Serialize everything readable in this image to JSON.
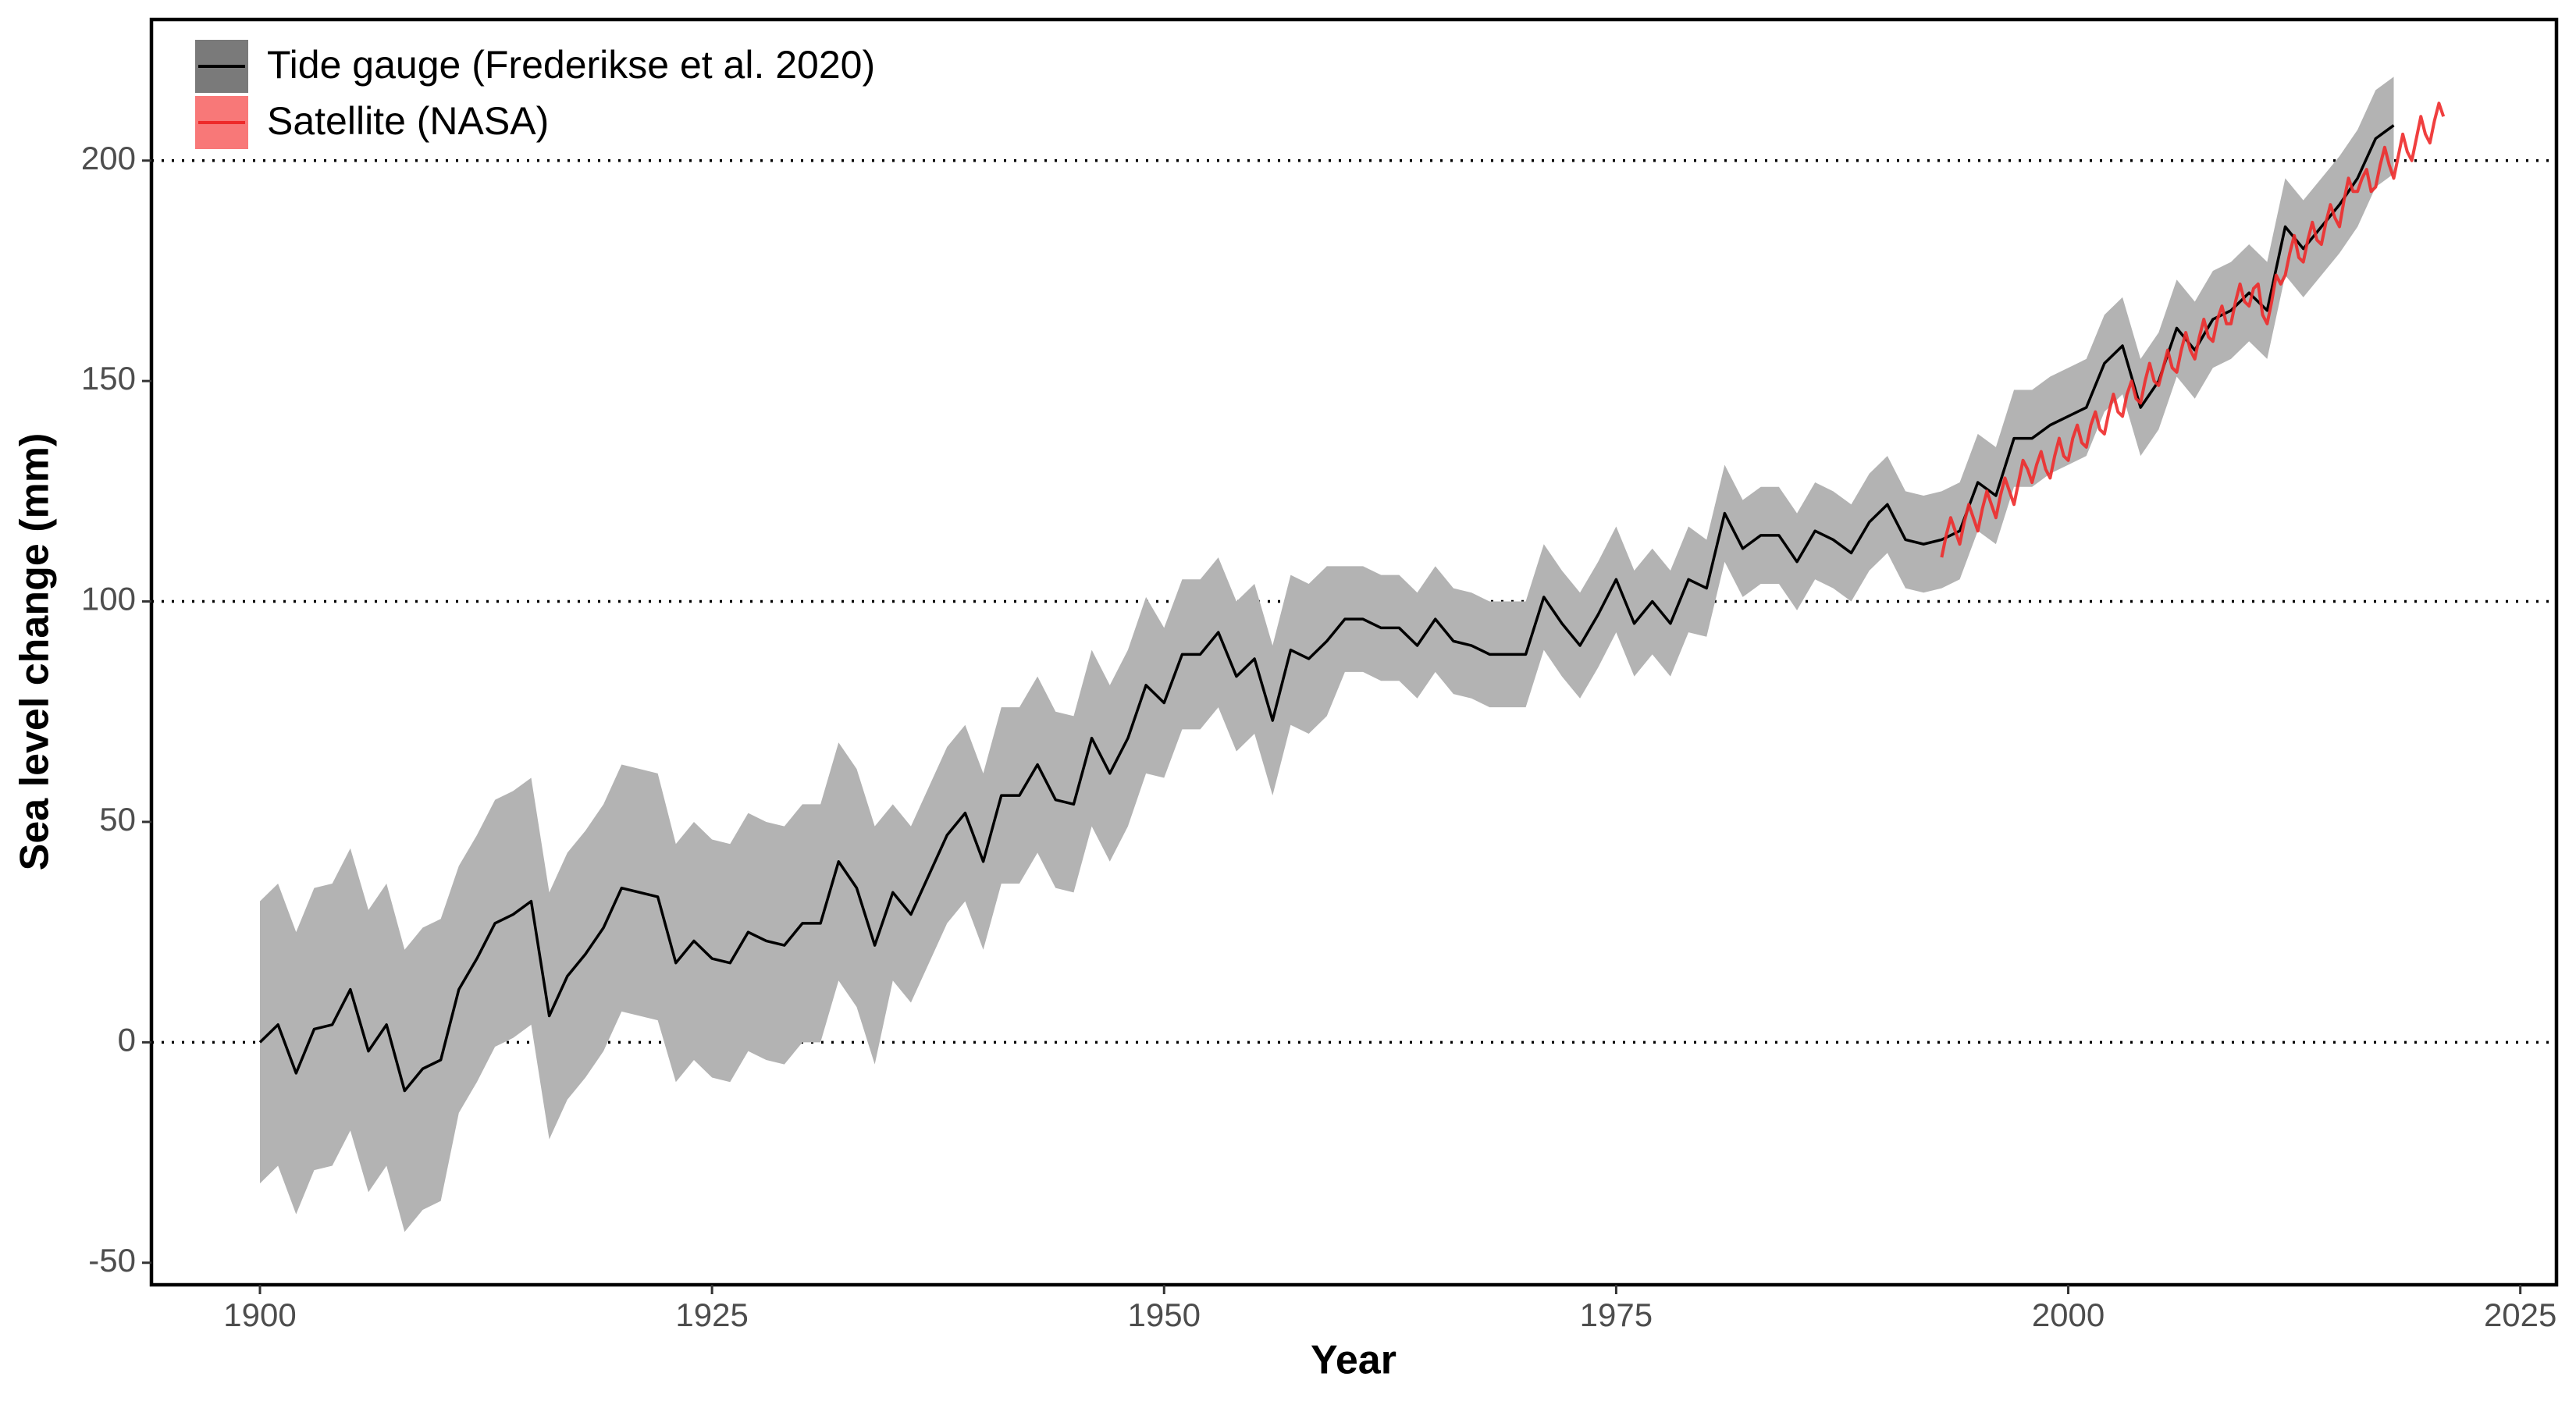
{
  "chart_data": {
    "type": "line",
    "x_label": "Year",
    "y_label": "Sea level change (mm)",
    "xlim": [
      1894,
      2027
    ],
    "ylim": [
      -55,
      232
    ],
    "xticks": [
      1900,
      1925,
      1950,
      1975,
      2000,
      2025
    ],
    "yticks": [
      -50,
      0,
      50,
      100,
      150,
      200
    ],
    "reference_lines": [
      0,
      100,
      200
    ],
    "legend": "top-left",
    "series": [
      {
        "name": "Tide gauge (Frederikse et al. 2020)",
        "color": "#000000",
        "band_color": "#b3b3b3",
        "legend_color": "#7a7a7a",
        "x": [
          1900,
          1901,
          1902,
          1903,
          1904,
          1905,
          1906,
          1907,
          1908,
          1909,
          1910,
          1911,
          1912,
          1913,
          1914,
          1915,
          1916,
          1917,
          1918,
          1919,
          1920,
          1921,
          1922,
          1923,
          1924,
          1925,
          1926,
          1927,
          1928,
          1929,
          1930,
          1931,
          1932,
          1933,
          1934,
          1935,
          1936,
          1937,
          1938,
          1939,
          1940,
          1941,
          1942,
          1943,
          1944,
          1945,
          1946,
          1947,
          1948,
          1949,
          1950,
          1951,
          1952,
          1953,
          1954,
          1955,
          1956,
          1957,
          1958,
          1959,
          1960,
          1961,
          1962,
          1963,
          1964,
          1965,
          1966,
          1967,
          1968,
          1969,
          1970,
          1971,
          1972,
          1973,
          1974,
          1975,
          1976,
          1977,
          1978,
          1979,
          1980,
          1981,
          1982,
          1983,
          1984,
          1985,
          1986,
          1987,
          1988,
          1989,
          1990,
          1991,
          1992,
          1993,
          1994,
          1995,
          1996,
          1997,
          1998,
          1999,
          2000,
          2001,
          2002,
          2003,
          2004,
          2005,
          2006,
          2007,
          2008,
          2009,
          2010,
          2011,
          2012,
          2013,
          2014,
          2015,
          2016,
          2017,
          2018
        ],
        "values": [
          0,
          4,
          -7,
          3,
          4,
          12,
          -2,
          4,
          -11,
          -6,
          -4,
          12,
          19,
          27,
          29,
          32,
          6,
          15,
          20,
          26,
          35,
          34,
          33,
          18,
          23,
          19,
          18,
          25,
          23,
          22,
          27,
          27,
          41,
          35,
          22,
          34,
          29,
          38,
          47,
          52,
          41,
          56,
          56,
          63,
          55,
          54,
          69,
          61,
          69,
          81,
          77,
          88,
          88,
          93,
          83,
          87,
          73,
          89,
          87,
          91,
          96,
          96,
          94,
          94,
          90,
          96,
          91,
          90,
          88,
          88,
          88,
          101,
          95,
          90,
          97,
          105,
          95,
          100,
          95,
          105,
          103,
          120,
          112,
          115,
          115,
          109,
          116,
          114,
          111,
          118,
          122,
          114,
          113,
          114,
          116,
          127,
          124,
          137,
          137,
          140,
          142,
          144,
          154,
          158,
          144,
          150,
          162,
          157,
          164,
          166,
          170,
          166,
          185,
          180,
          185,
          190,
          196,
          205,
          208
        ],
        "lower": [
          -32,
          -28,
          -39,
          -29,
          -28,
          -20,
          -34,
          -28,
          -43,
          -38,
          -36,
          -16,
          -9,
          -1,
          1,
          4,
          -22,
          -13,
          -8,
          -2,
          7,
          6,
          5,
          -9,
          -4,
          -8,
          -9,
          -2,
          -4,
          -5,
          0,
          0,
          14,
          8,
          -5,
          14,
          9,
          18,
          27,
          32,
          21,
          36,
          36,
          43,
          35,
          34,
          49,
          41,
          49,
          61,
          60,
          71,
          71,
          76,
          66,
          70,
          56,
          72,
          70,
          74,
          84,
          84,
          82,
          82,
          78,
          84,
          79,
          78,
          76,
          76,
          76,
          89,
          83,
          78,
          85,
          93,
          83,
          88,
          83,
          93,
          92,
          109,
          101,
          104,
          104,
          98,
          105,
          103,
          100,
          107,
          111,
          103,
          102,
          103,
          105,
          116,
          113,
          126,
          126,
          129,
          131,
          133,
          143,
          147,
          133,
          139,
          151,
          146,
          153,
          155,
          159,
          155,
          174,
          169,
          174,
          179,
          185,
          194,
          197
        ],
        "upper": [
          32,
          36,
          25,
          35,
          36,
          44,
          30,
          36,
          21,
          26,
          28,
          40,
          47,
          55,
          57,
          60,
          34,
          43,
          48,
          54,
          63,
          62,
          61,
          45,
          50,
          46,
          45,
          52,
          50,
          49,
          54,
          54,
          68,
          62,
          49,
          54,
          49,
          58,
          67,
          72,
          61,
          76,
          76,
          83,
          75,
          74,
          89,
          81,
          89,
          101,
          94,
          105,
          105,
          110,
          100,
          104,
          90,
          106,
          104,
          108,
          108,
          108,
          106,
          106,
          102,
          108,
          103,
          102,
          100,
          100,
          100,
          113,
          107,
          102,
          109,
          117,
          107,
          112,
          107,
          117,
          114,
          131,
          123,
          126,
          126,
          120,
          127,
          125,
          122,
          129,
          133,
          125,
          124,
          125,
          127,
          138,
          135,
          148,
          148,
          151,
          153,
          155,
          165,
          169,
          155,
          161,
          173,
          168,
          175,
          177,
          181,
          177,
          196,
          191,
          196,
          201,
          207,
          216,
          219
        ]
      },
      {
        "name": "Satellite (NASA)",
        "color": "#ee2a2a",
        "legend_color": "#f87878",
        "x": [
          1993,
          1993.25,
          1993.5,
          1993.75,
          1994,
          1994.25,
          1994.5,
          1994.75,
          1995,
          1995.25,
          1995.5,
          1995.75,
          1996,
          1996.25,
          1996.5,
          1996.75,
          1997,
          1997.25,
          1997.5,
          1997.75,
          1998,
          1998.25,
          1998.5,
          1998.75,
          1999,
          1999.25,
          1999.5,
          1999.75,
          2000,
          2000.25,
          2000.5,
          2000.75,
          2001,
          2001.25,
          2001.5,
          2001.75,
          2002,
          2002.25,
          2002.5,
          2002.75,
          2003,
          2003.25,
          2003.5,
          2003.75,
          2004,
          2004.25,
          2004.5,
          2004.75,
          2005,
          2005.25,
          2005.5,
          2005.75,
          2006,
          2006.25,
          2006.5,
          2006.75,
          2007,
          2007.25,
          2007.5,
          2007.75,
          2008,
          2008.25,
          2008.5,
          2008.75,
          2009,
          2009.25,
          2009.5,
          2009.75,
          2010,
          2010.25,
          2010.5,
          2010.75,
          2011,
          2011.25,
          2011.5,
          2011.75,
          2012,
          2012.25,
          2012.5,
          2012.75,
          2013,
          2013.25,
          2013.5,
          2013.75,
          2014,
          2014.25,
          2014.5,
          2014.75,
          2015,
          2015.25,
          2015.5,
          2015.75,
          2016,
          2016.25,
          2016.5,
          2016.75,
          2017,
          2017.25,
          2017.5,
          2017.75,
          2018,
          2018.25,
          2018.5,
          2018.75,
          2019,
          2019.25,
          2019.5,
          2019.75,
          2020,
          2020.25,
          2020.5,
          2020.75
        ],
        "values": [
          110,
          115,
          119,
          116,
          113,
          118,
          122,
          119,
          116,
          121,
          125,
          122,
          119,
          124,
          128,
          125,
          122,
          127,
          132,
          130,
          127,
          131,
          134,
          130,
          128,
          133,
          137,
          133,
          132,
          137,
          140,
          136,
          135,
          140,
          143,
          139,
          138,
          143,
          147,
          143,
          142,
          147,
          150,
          146,
          145,
          150,
          154,
          150,
          149,
          153,
          157,
          153,
          152,
          157,
          161,
          157,
          155,
          160,
          164,
          160,
          159,
          164,
          167,
          163,
          163,
          168,
          172,
          168,
          167,
          171,
          172,
          165,
          163,
          168,
          174,
          172,
          174,
          179,
          183,
          178,
          177,
          182,
          186,
          182,
          181,
          186,
          190,
          187,
          185,
          191,
          196,
          193,
          193,
          196,
          198,
          193,
          194,
          199,
          203,
          199,
          196,
          201,
          206,
          202,
          200,
          205,
          210,
          206,
          204,
          209,
          213,
          210
        ]
      }
    ]
  }
}
